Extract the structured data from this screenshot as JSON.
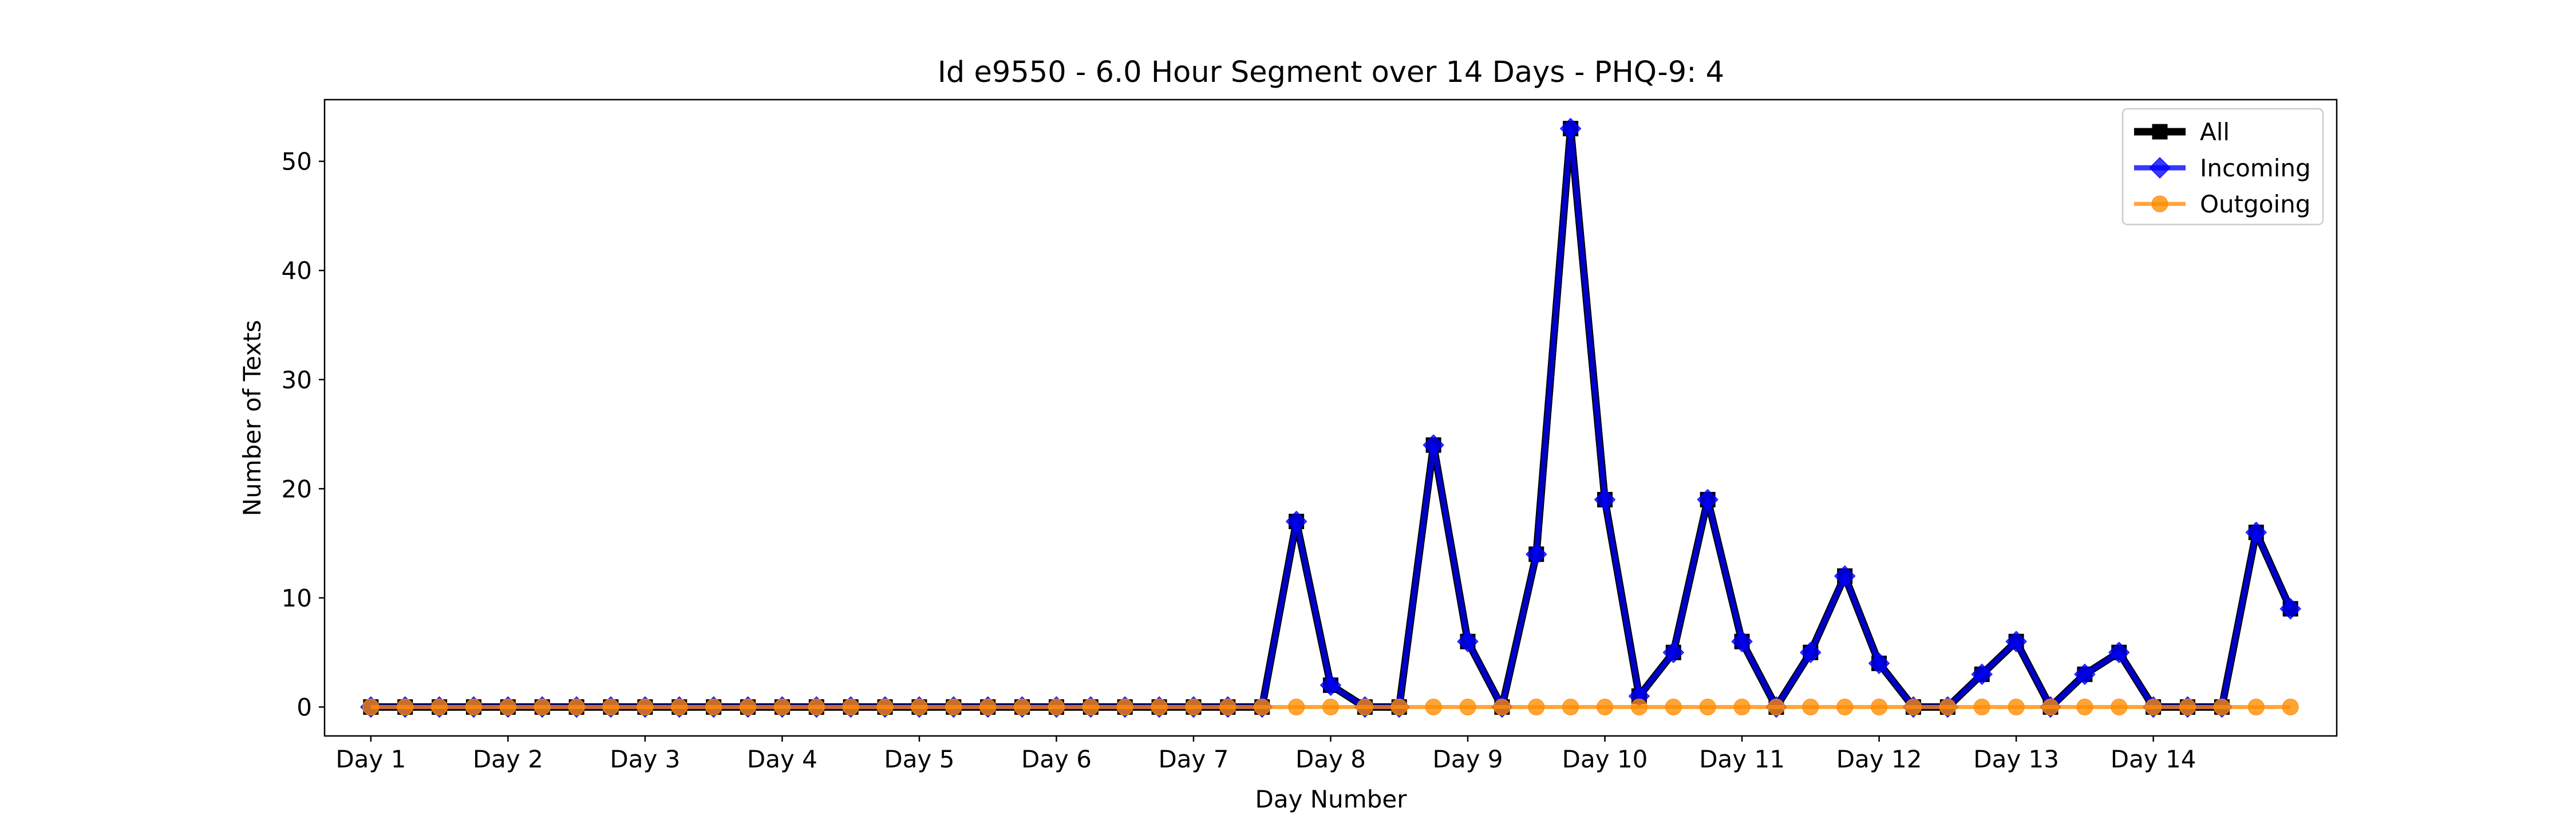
{
  "chart_data": {
    "type": "line",
    "title": "Id e9550 - 6.0 Hour Segment over 14 Days - PHQ-9: 4",
    "xlabel": "Day Number",
    "ylabel": "Number of Texts",
    "x_tick_labels": [
      "Day 1",
      "Day 2",
      "Day 3",
      "Day 4",
      "Day 5",
      "Day 6",
      "Day 7",
      "Day 8",
      "Day 9",
      "Day 10",
      "Day 11",
      "Day 12",
      "Day 13",
      "Day 14"
    ],
    "y_ticks": [
      0,
      10,
      20,
      30,
      40,
      50
    ],
    "ylim": [
      -2.65,
      55.65
    ],
    "xlim": [
      -1.35,
      57.35
    ],
    "points_per_day": 4,
    "grid": false,
    "legend_position": "top-right",
    "series": [
      {
        "name": "All",
        "color": "#000000",
        "marker": "square",
        "values": [
          0,
          0,
          0,
          0,
          0,
          0,
          0,
          0,
          0,
          0,
          0,
          0,
          0,
          0,
          0,
          0,
          0,
          0,
          0,
          0,
          0,
          0,
          0,
          0,
          0,
          0,
          0,
          17,
          2,
          0,
          0,
          24,
          6,
          0,
          14,
          53,
          19,
          1,
          5,
          19,
          6,
          0,
          5,
          12,
          4,
          0,
          0,
          3,
          6,
          0,
          3,
          5,
          0,
          0,
          0,
          16,
          9
        ]
      },
      {
        "name": "Incoming",
        "color": "#0000ff",
        "marker": "diamond",
        "values": [
          0,
          0,
          0,
          0,
          0,
          0,
          0,
          0,
          0,
          0,
          0,
          0,
          0,
          0,
          0,
          0,
          0,
          0,
          0,
          0,
          0,
          0,
          0,
          0,
          0,
          0,
          0,
          17,
          2,
          0,
          0,
          24,
          6,
          0,
          14,
          53,
          19,
          1,
          5,
          19,
          6,
          0,
          5,
          12,
          4,
          0,
          0,
          3,
          6,
          0,
          3,
          5,
          0,
          0,
          0,
          16,
          9
        ]
      },
      {
        "name": "Outgoing",
        "color": "#ff8c00",
        "marker": "circle",
        "values": [
          0,
          0,
          0,
          0,
          0,
          0,
          0,
          0,
          0,
          0,
          0,
          0,
          0,
          0,
          0,
          0,
          0,
          0,
          0,
          0,
          0,
          0,
          0,
          0,
          0,
          0,
          0,
          0,
          0,
          0,
          0,
          0,
          0,
          0,
          0,
          0,
          0,
          0,
          0,
          0,
          0,
          0,
          0,
          0,
          0,
          0,
          0,
          0,
          0,
          0,
          0,
          0,
          0,
          0,
          0,
          0,
          0
        ]
      }
    ]
  }
}
